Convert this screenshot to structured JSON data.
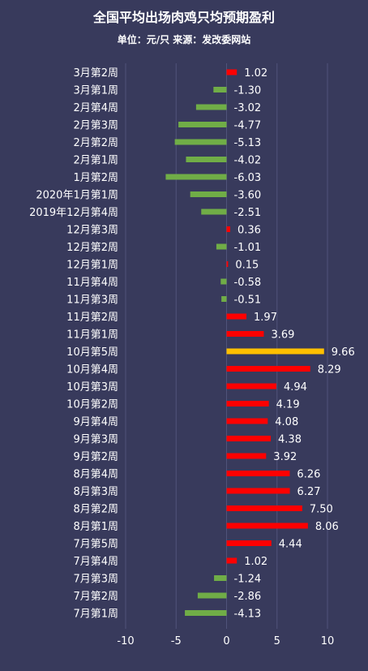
{
  "chart_data": {
    "type": "bar",
    "orientation": "horizontal",
    "title": "全国平均出场肉鸡只均预期盈利",
    "subtitle": "单位：元/只 来源：发改委网站",
    "categories": [
      "3月第2周",
      "3月第1周",
      "2月第4周",
      "2月第3周",
      "2月第2周",
      "2月第1周",
      "1月第2周",
      "2020年1月第1周",
      "2019年12月第4周",
      "12月第3周",
      "12月第2周",
      "12月第1周",
      "11月第4周",
      "11月第3周",
      "11月第2周",
      "11月第1周",
      "10月第5周",
      "10月第4周",
      "10月第3周",
      "10月第2周",
      "9月第4周",
      "9月第3周",
      "9月第2周",
      "8月第4周",
      "8月第3周",
      "8月第2周",
      "8月第1周",
      "7月第5周",
      "7月第4周",
      "7月第3周",
      "7月第2周",
      "7月第1周"
    ],
    "values": [
      1.02,
      -1.3,
      -3.02,
      -4.77,
      -5.13,
      -4.02,
      -6.03,
      -3.6,
      -2.51,
      0.36,
      -1.01,
      0.15,
      -0.58,
      -0.51,
      1.97,
      3.69,
      9.66,
      8.29,
      4.94,
      4.19,
      4.08,
      4.38,
      3.92,
      6.26,
      6.27,
      7.5,
      8.06,
      4.44,
      1.02,
      -1.24,
      -2.86,
      -4.13
    ],
    "value_labels": [
      "1.02",
      "-1.30",
      "-3.02",
      "-4.77",
      "-5.13",
      "-4.02",
      "-6.03",
      "-3.60",
      "-2.51",
      "0.36",
      "-1.01",
      "0.15",
      "-0.58",
      "-0.51",
      "1.97",
      "3.69",
      "9.66",
      "8.29",
      "4.94",
      "4.19",
      "4.08",
      "4.38",
      "3.92",
      "6.26",
      "6.27",
      "7.50",
      "8.06",
      "4.44",
      "1.02",
      "-1.24",
      "-2.86",
      "-4.13"
    ],
    "highlight_index": 16,
    "xlim": [
      -10,
      10
    ],
    "x_ticks": [
      -10,
      -5,
      0,
      5,
      10
    ],
    "grid": true,
    "colors": {
      "positive": "#ff0000",
      "negative": "#70ad47",
      "highlight": "#ffc000",
      "background": "#383a5c",
      "gridline": "#50537a"
    }
  }
}
